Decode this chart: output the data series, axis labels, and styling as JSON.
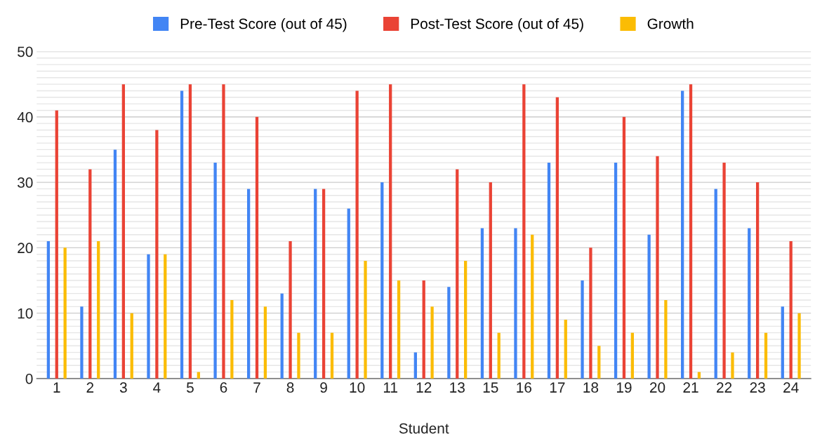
{
  "chart_data": {
    "type": "bar",
    "xlabel": "Student",
    "categories": [
      "1",
      "2",
      "3",
      "4",
      "5",
      "6",
      "7",
      "8",
      "9",
      "10",
      "11",
      "12",
      "13",
      "15",
      "16",
      "17",
      "18",
      "19",
      "20",
      "21",
      "22",
      "23",
      "24"
    ],
    "series": [
      {
        "name": "Pre-Test Score (out of 45)",
        "color": "#4285f4",
        "values": [
          21,
          11,
          35,
          19,
          44,
          33,
          29,
          13,
          29,
          26,
          30,
          4,
          14,
          23,
          23,
          33,
          15,
          33,
          22,
          44,
          29,
          23,
          11
        ]
      },
      {
        "name": "Post-Test Score (out of 45)",
        "color": "#ea4335",
        "values": [
          41,
          32,
          45,
          38,
          45,
          45,
          40,
          21,
          29,
          44,
          45,
          15,
          32,
          30,
          45,
          43,
          20,
          40,
          34,
          45,
          33,
          30,
          21
        ]
      },
      {
        "name": "Growth",
        "color": "#fbbc04",
        "values": [
          20,
          21,
          10,
          19,
          1,
          12,
          11,
          7,
          7,
          18,
          15,
          11,
          18,
          7,
          22,
          9,
          5,
          7,
          12,
          1,
          4,
          7,
          10
        ]
      }
    ],
    "ylim": [
      0,
      50
    ],
    "yticks": [
      0,
      {
        "value": 1,
        "label": null
      },
      {
        "value": 2,
        "label": null
      },
      {
        "value": 3,
        "label": null
      },
      {
        "value": 4,
        "label": null
      },
      {
        "value": 5,
        "label": null
      },
      {
        "value": 6,
        "label": null
      },
      {
        "value": 7,
        "label": null
      },
      {
        "value": 8,
        "label": null
      },
      {
        "value": 9,
        "label": null
      },
      10,
      {
        "value": 11,
        "label": null
      },
      {
        "value": 12,
        "label": null
      },
      {
        "value": 13,
        "label": null
      },
      {
        "value": 14,
        "label": null
      },
      {
        "value": 15,
        "label": null
      },
      {
        "value": 16,
        "label": null
      },
      {
        "value": 17,
        "label": null
      },
      {
        "value": 18,
        "label": null
      },
      {
        "value": 19,
        "label": null
      },
      20,
      {
        "value": 21,
        "label": null
      },
      {
        "value": 22,
        "label": null
      },
      {
        "value": 23,
        "label": null
      },
      {
        "value": 24,
        "label": null
      },
      {
        "value": 25,
        "label": null
      },
      {
        "value": 26,
        "label": null
      },
      {
        "value": 27,
        "label": null
      },
      {
        "value": 28,
        "label": null
      },
      {
        "value": 29,
        "label": null
      },
      30,
      {
        "value": 31,
        "label": null
      },
      {
        "value": 32,
        "label": null
      },
      {
        "value": 33,
        "label": null
      },
      {
        "value": 34,
        "label": null
      },
      {
        "value": 35,
        "label": null
      },
      {
        "value": 36,
        "label": null
      },
      {
        "value": 37,
        "label": null
      },
      {
        "value": 38,
        "label": null
      },
      {
        "value": 39,
        "label": null
      },
      40,
      {
        "value": 41,
        "label": null
      },
      {
        "value": 42,
        "label": null
      },
      {
        "value": 43,
        "label": null
      },
      {
        "value": 44,
        "label": null
      },
      {
        "value": 45,
        "label": null
      },
      {
        "value": 46,
        "label": null
      },
      {
        "value": 47,
        "label": null
      },
      {
        "value": 48,
        "label": null
      },
      {
        "value": 49,
        "label": null
      },
      50
    ],
    "grid": "y",
    "legend": "top"
  }
}
